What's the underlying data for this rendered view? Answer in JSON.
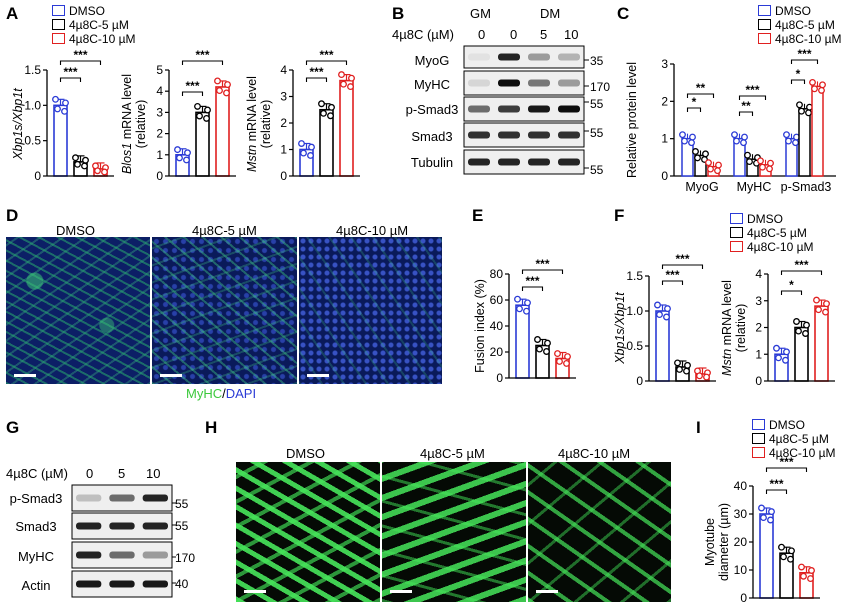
{
  "panels": {
    "A": "A",
    "B": "B",
    "C": "C",
    "D": "D",
    "E": "E",
    "F": "F",
    "G": "G",
    "H": "H",
    "I": "I"
  },
  "legend": {
    "dmso": "DMSO",
    "c5": "4µ8C-5 µM",
    "c10": "4µ8C-10 µM",
    "colors": {
      "dmso": "#2b3bd6",
      "c5": "#000000",
      "c10": "#e02020"
    }
  },
  "sig": {
    "three": "***",
    "two": "**",
    "one": "*"
  },
  "panelA": {
    "charts": [
      {
        "ylabel_italic": "Xbp1s/Xbp1t",
        "ylabel_rest": "",
        "yticks": [
          "0",
          "0.5",
          "1.0",
          "1.5"
        ]
      },
      {
        "ylabel_italic": "Blos1",
        "ylabel_rest": " mRNA level",
        "ylabel2": "(relative)",
        "yticks": [
          "0",
          "1",
          "2",
          "3",
          "4",
          "5"
        ]
      },
      {
        "ylabel_italic": "Mstn",
        "ylabel_rest": " mRNA level",
        "ylabel2": "(relative)",
        "yticks": [
          "0",
          "1",
          "2",
          "3",
          "4"
        ]
      }
    ]
  },
  "panelB": {
    "treatment": "4µ8C (µM)",
    "gm": "GM",
    "dm": "DM",
    "doses": [
      "0",
      "0",
      "5",
      "10"
    ],
    "rows": [
      "MyoG",
      "MyHC",
      "p-Smad3",
      "Smad3",
      "Tubulin"
    ],
    "sizes": [
      "35",
      "170",
      "55",
      "55",
      "55"
    ]
  },
  "panelC": {
    "ylabel": "Relative protein level",
    "yticks": [
      "0",
      "1",
      "2",
      "3"
    ],
    "groups": [
      "MyoG",
      "MyHC",
      "p-Smad3"
    ]
  },
  "panelD": {
    "titles": [
      "DMSO",
      "4µ8C-5 µM",
      "4µ8C-10 µM"
    ],
    "caption_green": "MyHC",
    "caption_sep": "/",
    "caption_blue": "DAPI"
  },
  "panelE": {
    "ylabel": "Fusion index (%)",
    "yticks": [
      "0",
      "20",
      "40",
      "60",
      "80"
    ]
  },
  "panelF": {
    "charts": [
      {
        "ylabel_italic": "Xbp1s/Xbp1t",
        "yticks": [
          "0",
          "0.5",
          "1.0",
          "1.5"
        ]
      },
      {
        "ylabel_italic": "Mstn",
        "ylabel_rest": " mRNA level",
        "ylabel2": "(relative)",
        "yticks": [
          "0",
          "1",
          "2",
          "3",
          "4"
        ]
      }
    ]
  },
  "panelG": {
    "treatment": "4µ8C (µM)",
    "doses": [
      "0",
      "5",
      "10"
    ],
    "rows": [
      "p-Smad3",
      "Smad3",
      "MyHC",
      "Actin"
    ],
    "sizes": [
      "55",
      "55",
      "170",
      "40"
    ]
  },
  "panelH": {
    "titles": [
      "DMSO",
      "4µ8C-5 µM",
      "4µ8C-10 µM"
    ]
  },
  "panelI": {
    "ylabel": "Myotube",
    "ylabel2": "diameter (µm)",
    "yticks": [
      "0",
      "10",
      "20",
      "30",
      "40"
    ]
  },
  "chart_data": [
    {
      "type": "bar",
      "id": "A1",
      "categories": [
        "DMSO",
        "4µ8C-5 µM",
        "4µ8C-10 µM"
      ],
      "values": [
        1.0,
        0.2,
        0.1
      ],
      "ylim": [
        0,
        1.5
      ],
      "ylabel": "Xbp1s/Xbp1t"
    },
    {
      "type": "bar",
      "id": "A2",
      "categories": [
        "DMSO",
        "4µ8C-5 µM",
        "4µ8C-10 µM"
      ],
      "values": [
        1.0,
        3.0,
        4.2
      ],
      "ylim": [
        0,
        5
      ],
      "ylabel": "Blos1 mRNA level (relative)"
    },
    {
      "type": "bar",
      "id": "A3",
      "categories": [
        "DMSO",
        "4µ8C-5 µM",
        "4µ8C-10 µM"
      ],
      "values": [
        1.0,
        2.5,
        3.6
      ],
      "ylim": [
        0,
        4
      ],
      "ylabel": "Mstn mRNA level (relative)"
    },
    {
      "type": "bar",
      "id": "C",
      "categories": [
        "MyoG",
        "MyHC",
        "p-Smad3"
      ],
      "series": [
        {
          "name": "DMSO",
          "values": [
            1.0,
            1.0,
            1.0
          ]
        },
        {
          "name": "4µ8C-5 µM",
          "values": [
            0.55,
            0.45,
            1.8
          ]
        },
        {
          "name": "4µ8C-10 µM",
          "values": [
            0.25,
            0.3,
            2.4
          ]
        }
      ],
      "ylim": [
        0,
        3
      ],
      "ylabel": "Relative protein level"
    },
    {
      "type": "bar",
      "id": "E",
      "categories": [
        "DMSO",
        "4µ8C-5 µM",
        "4µ8C-10 µM"
      ],
      "values": [
        56,
        25,
        15
      ],
      "ylim": [
        0,
        80
      ],
      "ylabel": "Fusion index (%)"
    },
    {
      "type": "bar",
      "id": "F1",
      "categories": [
        "DMSO",
        "4µ8C-5 µM",
        "4µ8C-10 µM"
      ],
      "values": [
        1.0,
        0.2,
        0.1
      ],
      "ylim": [
        0,
        1.5
      ],
      "ylabel": "Xbp1s/Xbp1t"
    },
    {
      "type": "bar",
      "id": "F2",
      "categories": [
        "DMSO",
        "4µ8C-5 µM",
        "4µ8C-10 µM"
      ],
      "values": [
        1.0,
        2.0,
        2.8
      ],
      "ylim": [
        0,
        4
      ],
      "ylabel": "Mstn mRNA level (relative)"
    },
    {
      "type": "bar",
      "id": "I",
      "categories": [
        "DMSO",
        "4µ8C-5 µM",
        "4µ8C-10 µM"
      ],
      "values": [
        30,
        16,
        9
      ],
      "ylim": [
        0,
        40
      ],
      "ylabel": "Myotube diameter (µm)"
    }
  ]
}
